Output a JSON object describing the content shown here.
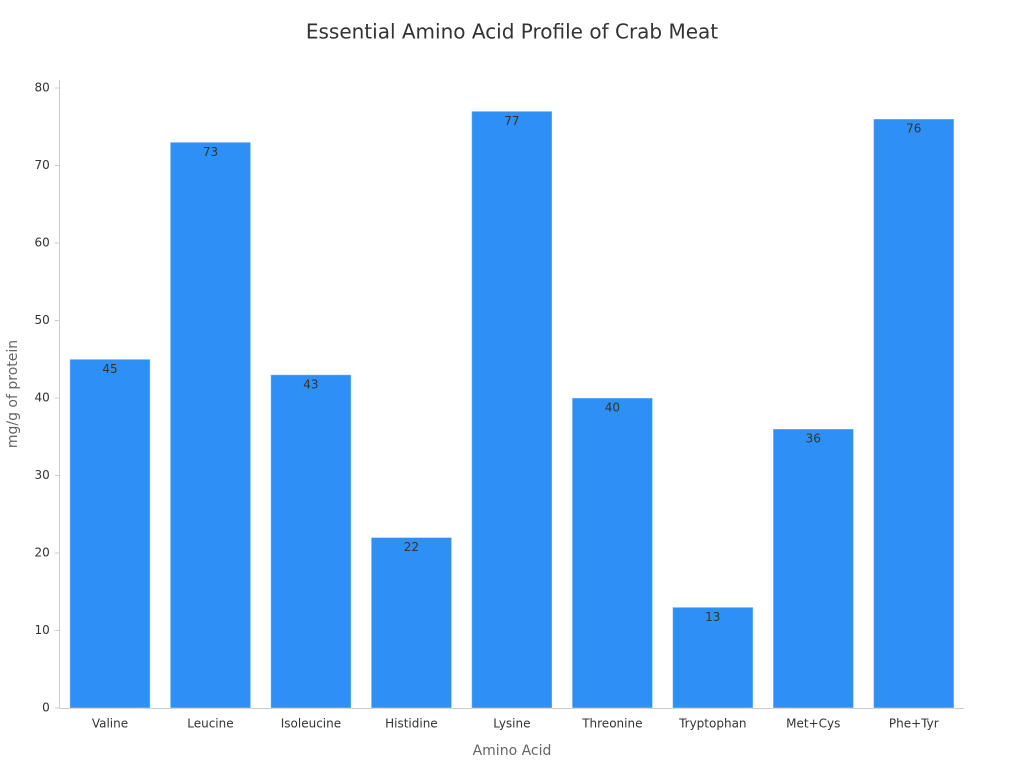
{
  "chart_data": {
    "type": "bar",
    "title": "Essential Amino Acid Profile of Crab Meat",
    "x_label": "Amino Acid",
    "y_label": "mg/g of protein",
    "categories": [
      "Valine",
      "Leucine",
      "Isoleucine",
      "Histidine",
      "Lysine",
      "Threonine",
      "Tryptophan",
      "Met+Cys",
      "Phe+Tyr"
    ],
    "values": [
      45,
      73,
      43,
      22,
      77,
      40,
      13,
      36,
      76
    ],
    "color": "#2e90f5",
    "ylim": [
      0,
      80
    ],
    "yticks": [
      0,
      10,
      20,
      30,
      40,
      50,
      60,
      70,
      80
    ],
    "grid": false
  }
}
